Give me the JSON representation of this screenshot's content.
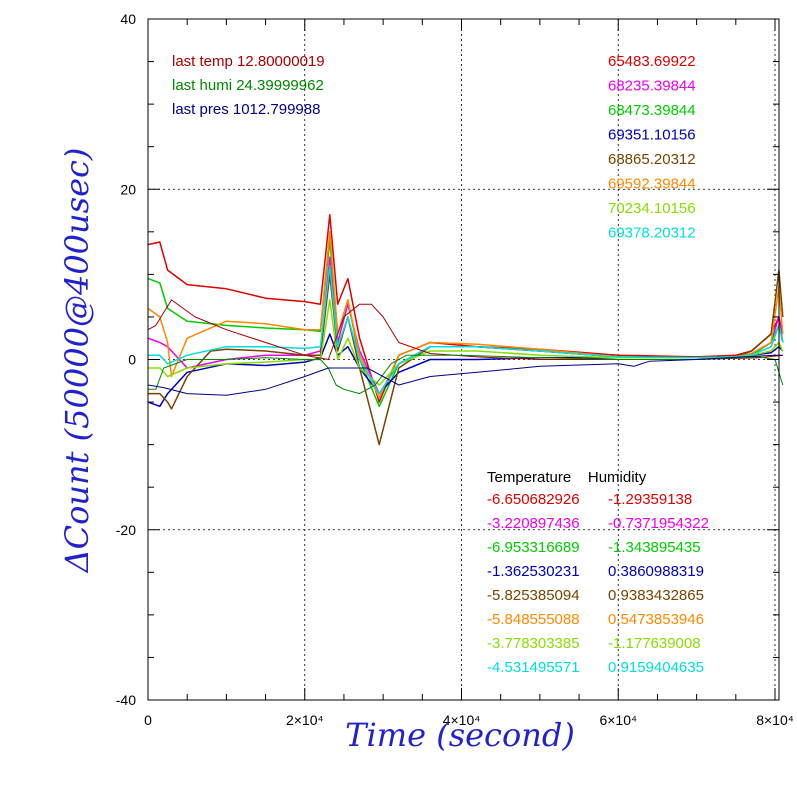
{
  "chart_data": {
    "type": "line",
    "xlabel": "Time (second)",
    "ylabel": "ΔCount (50000@400usec)",
    "xlim": [
      0,
      81000
    ],
    "ylim": [
      -40,
      40
    ],
    "x_ticks": [
      {
        "value": 0,
        "label": "0"
      },
      {
        "value": 20000,
        "label": "2×10⁴"
      },
      {
        "value": 40000,
        "label": "4×10⁴"
      },
      {
        "value": 60000,
        "label": "6×10⁴"
      },
      {
        "value": 80000,
        "label": "8×10⁴"
      }
    ],
    "y_ticks": [
      {
        "value": -40,
        "label": "-40"
      },
      {
        "value": -20,
        "label": "-20"
      },
      {
        "value": 0,
        "label": "0"
      },
      {
        "value": 20,
        "label": "20"
      },
      {
        "value": 40,
        "label": "40"
      }
    ],
    "grid": true,
    "last_values": [
      {
        "text": "last temp 12.80000019",
        "color": "#aa0000"
      },
      {
        "text": "last humi 24.39999962",
        "color": "#008800"
      },
      {
        "text": "last pres 1012.799988",
        "color": "#000088"
      }
    ],
    "channel_values": [
      {
        "text": "65483.69922",
        "color": "#dd0000"
      },
      {
        "text": "68235.39844",
        "color": "#ee00ee"
      },
      {
        "text": "68473.39844",
        "color": "#00cc00"
      },
      {
        "text": "69351.10156",
        "color": "#0000bb"
      },
      {
        "text": "68865.20312",
        "color": "#774400"
      },
      {
        "text": "69592.39844",
        "color": "#ff8800"
      },
      {
        "text": "70234.10156",
        "color": "#88dd00"
      },
      {
        "text": "69378.20312",
        "color": "#00dddd"
      }
    ],
    "coefficient_header": "Temperature    Humidity",
    "coefficients": [
      {
        "temperature": "-6.650682926",
        "humidity": "-1.29359138",
        "color": "#dd0000"
      },
      {
        "temperature": "-3.220897436",
        "humidity": "-0.7371954322",
        "color": "#ee00ee"
      },
      {
        "temperature": "-6.953316689",
        "humidity": "-1.343895435",
        "color": "#00cc00"
      },
      {
        "temperature": "-1.362530231",
        "humidity": "0.3860988319",
        "color": "#0000bb"
      },
      {
        "temperature": "-5.825385094",
        "humidity": "0.9383432865",
        "color": "#774400"
      },
      {
        "temperature": "-5.848555088",
        "humidity": "0.5473853946",
        "color": "#ff8800"
      },
      {
        "temperature": "-3.778303385",
        "humidity": "-1.177639008",
        "color": "#88dd00"
      },
      {
        "temperature": "-4.531495571",
        "humidity": "0.9159404635",
        "color": "#00dddd"
      }
    ],
    "series": [
      {
        "color": "#dd0000",
        "width": 1.5,
        "x": [
          0,
          1500,
          2500,
          5000,
          10000,
          15000,
          20000,
          22000,
          23200,
          24200,
          25500,
          27000,
          29500,
          32000,
          36000,
          42000,
          50000,
          60000,
          70000,
          75000,
          77000,
          79500,
          80500,
          81000
        ],
        "y": [
          13.5,
          13.8,
          10.5,
          8.8,
          8.3,
          7.2,
          6.8,
          6.5,
          17,
          6.5,
          9.5,
          2.5,
          -5,
          0.5,
          2,
          1.5,
          1.2,
          0.5,
          0.3,
          0.5,
          1,
          3,
          5,
          3
        ]
      },
      {
        "color": "#ee00ee",
        "width": 1.5,
        "x": [
          0,
          1500,
          2500,
          5000,
          10000,
          15000,
          20000,
          22000,
          23200,
          24200,
          25500,
          27000,
          29500,
          32000,
          36000,
          42000,
          50000,
          60000,
          70000,
          75000,
          77000,
          79500,
          80500,
          81000
        ],
        "y": [
          2.5,
          2,
          1.5,
          -1,
          0,
          0.5,
          0.5,
          1,
          12,
          2,
          6.5,
          1,
          -4,
          -0.5,
          1.5,
          1.5,
          1,
          0.3,
          0.2,
          0.3,
          0.7,
          2,
          5,
          2
        ]
      },
      {
        "color": "#00cc00",
        "width": 1.5,
        "x": [
          0,
          1500,
          2500,
          5000,
          10000,
          15000,
          20000,
          22000,
          23200,
          24200,
          25500,
          27000,
          29500,
          32000,
          36000,
          42000,
          50000,
          60000,
          70000,
          75000,
          77000,
          79500,
          80500,
          81000
        ],
        "y": [
          9.5,
          9,
          6,
          4.5,
          4,
          3.7,
          3.5,
          3.3,
          14,
          3,
          7,
          0,
          -5.5,
          -0.5,
          1.5,
          1.5,
          1,
          0.3,
          0.2,
          0.3,
          0.5,
          2,
          4,
          2
        ]
      },
      {
        "color": "#0000bb",
        "width": 1.5,
        "x": [
          0,
          1500,
          2500,
          5000,
          10000,
          15000,
          20000,
          22000,
          23200,
          24200,
          25500,
          27000,
          29500,
          32000,
          36000,
          42000,
          50000,
          60000,
          70000,
          75000,
          77000,
          79500,
          80500,
          81000
        ],
        "y": [
          -5,
          -5.5,
          -4,
          -1.5,
          -0.5,
          -0.7,
          -0.3,
          0.2,
          3,
          0.5,
          1.5,
          -1,
          -4,
          -1.5,
          0,
          0,
          0.2,
          0.2,
          0.2,
          0.3,
          0.5,
          0.8,
          1.5,
          1
        ]
      },
      {
        "color": "#774400",
        "width": 1.5,
        "x": [
          0,
          1500,
          2500,
          3000,
          5000,
          8000,
          10000,
          15000,
          20000,
          22000,
          23200,
          24200,
          25500,
          27000,
          29500,
          32000,
          36000,
          42000,
          50000,
          60000,
          70000,
          75000,
          77000,
          79500,
          80500,
          81000
        ],
        "y": [
          -4,
          -4,
          -5,
          -5.8,
          -2,
          1,
          1.2,
          1,
          0.5,
          0.5,
          10,
          1,
          5,
          -1,
          -10,
          -1,
          1.5,
          1.5,
          1,
          0.3,
          0.2,
          0.3,
          1,
          3,
          10.5,
          5
        ]
      },
      {
        "color": "#ff8800",
        "width": 1.5,
        "x": [
          0,
          1500,
          2500,
          3000,
          5000,
          10000,
          15000,
          20000,
          22000,
          23200,
          24200,
          25500,
          27000,
          29500,
          32000,
          36000,
          42000,
          50000,
          60000,
          70000,
          75000,
          77000,
          79500,
          80500,
          81000
        ],
        "y": [
          6,
          5,
          2,
          -2,
          2.5,
          4.5,
          4.2,
          3.5,
          3.5,
          15,
          3,
          7,
          0.5,
          -4.5,
          0.5,
          2,
          1.8,
          1.2,
          0.3,
          0.2,
          0.3,
          0.7,
          2,
          8.5,
          3
        ]
      },
      {
        "color": "#88dd00",
        "width": 1.5,
        "x": [
          0,
          1500,
          2500,
          5000,
          10000,
          15000,
          20000,
          22000,
          23200,
          24200,
          25500,
          27000,
          29500,
          32000,
          36000,
          42000,
          50000,
          60000,
          70000,
          75000,
          77000,
          79500,
          80500,
          81000
        ],
        "y": [
          -1,
          -1,
          -2,
          -1,
          -0.5,
          -0.3,
          0,
          0,
          7,
          0,
          2.5,
          -1,
          -3,
          -0.5,
          1,
          1,
          0.5,
          0.2,
          0.2,
          0.3,
          0.5,
          1,
          2,
          1
        ]
      },
      {
        "color": "#00dddd",
        "width": 1.5,
        "x": [
          0,
          1500,
          2500,
          5000,
          10000,
          15000,
          20000,
          22000,
          23200,
          24200,
          25500,
          27000,
          29500,
          32000,
          36000,
          42000,
          50000,
          60000,
          70000,
          75000,
          77000,
          79500,
          80500,
          81000
        ],
        "y": [
          0.5,
          0.5,
          -0.5,
          0.5,
          1.5,
          1.5,
          1.3,
          1.5,
          11,
          1.5,
          5,
          0,
          -4,
          -0.5,
          1.5,
          1.5,
          1,
          0.3,
          0.2,
          0.3,
          0.5,
          1.5,
          4,
          2
        ]
      },
      {
        "color": "#aa0000",
        "width": 1,
        "x": [
          0,
          1000,
          3000,
          6000,
          10000,
          15000,
          20000,
          23000,
          25000,
          27000,
          28500,
          30000,
          32000,
          36000,
          42000,
          50000,
          60000,
          70000,
          78000,
          81000
        ],
        "y": [
          3.5,
          4,
          7,
          5,
          3.5,
          2,
          0.5,
          0,
          5,
          6.5,
          6.5,
          5,
          2,
          0.7,
          0.3,
          0,
          0,
          0,
          0.2,
          0.5
        ]
      },
      {
        "color": "#008800",
        "width": 1,
        "x": [
          0,
          1000,
          2000,
          5000,
          10000,
          15000,
          20000,
          22000,
          23000,
          24000,
          25000,
          27000,
          29000,
          31000,
          33000,
          35000,
          40000,
          50000,
          60000,
          70000,
          78000,
          80000,
          81000
        ],
        "y": [
          -3.5,
          -3.5,
          -1,
          0,
          0,
          0.2,
          0,
          0,
          -1,
          -3,
          -3.5,
          -4,
          -3,
          -0.5,
          0.5,
          0.5,
          0.5,
          0.2,
          0,
          0,
          0.3,
          0,
          -3
        ]
      },
      {
        "color": "#000088",
        "width": 1,
        "x": [
          0,
          2000,
          5000,
          10000,
          15000,
          20000,
          23000,
          25000,
          28000,
          30000,
          32000,
          36000,
          42000,
          50000,
          60000,
          62000,
          64000,
          70000,
          76000,
          80000,
          81000
        ],
        "y": [
          -3,
          -3.3,
          -4,
          -4.2,
          -3.5,
          -2,
          -1,
          -1,
          -1,
          -2,
          -3,
          -2,
          -1.5,
          -0.8,
          -0.5,
          -0.8,
          -0.2,
          0,
          0.3,
          0.5,
          0.5
        ]
      }
    ]
  }
}
